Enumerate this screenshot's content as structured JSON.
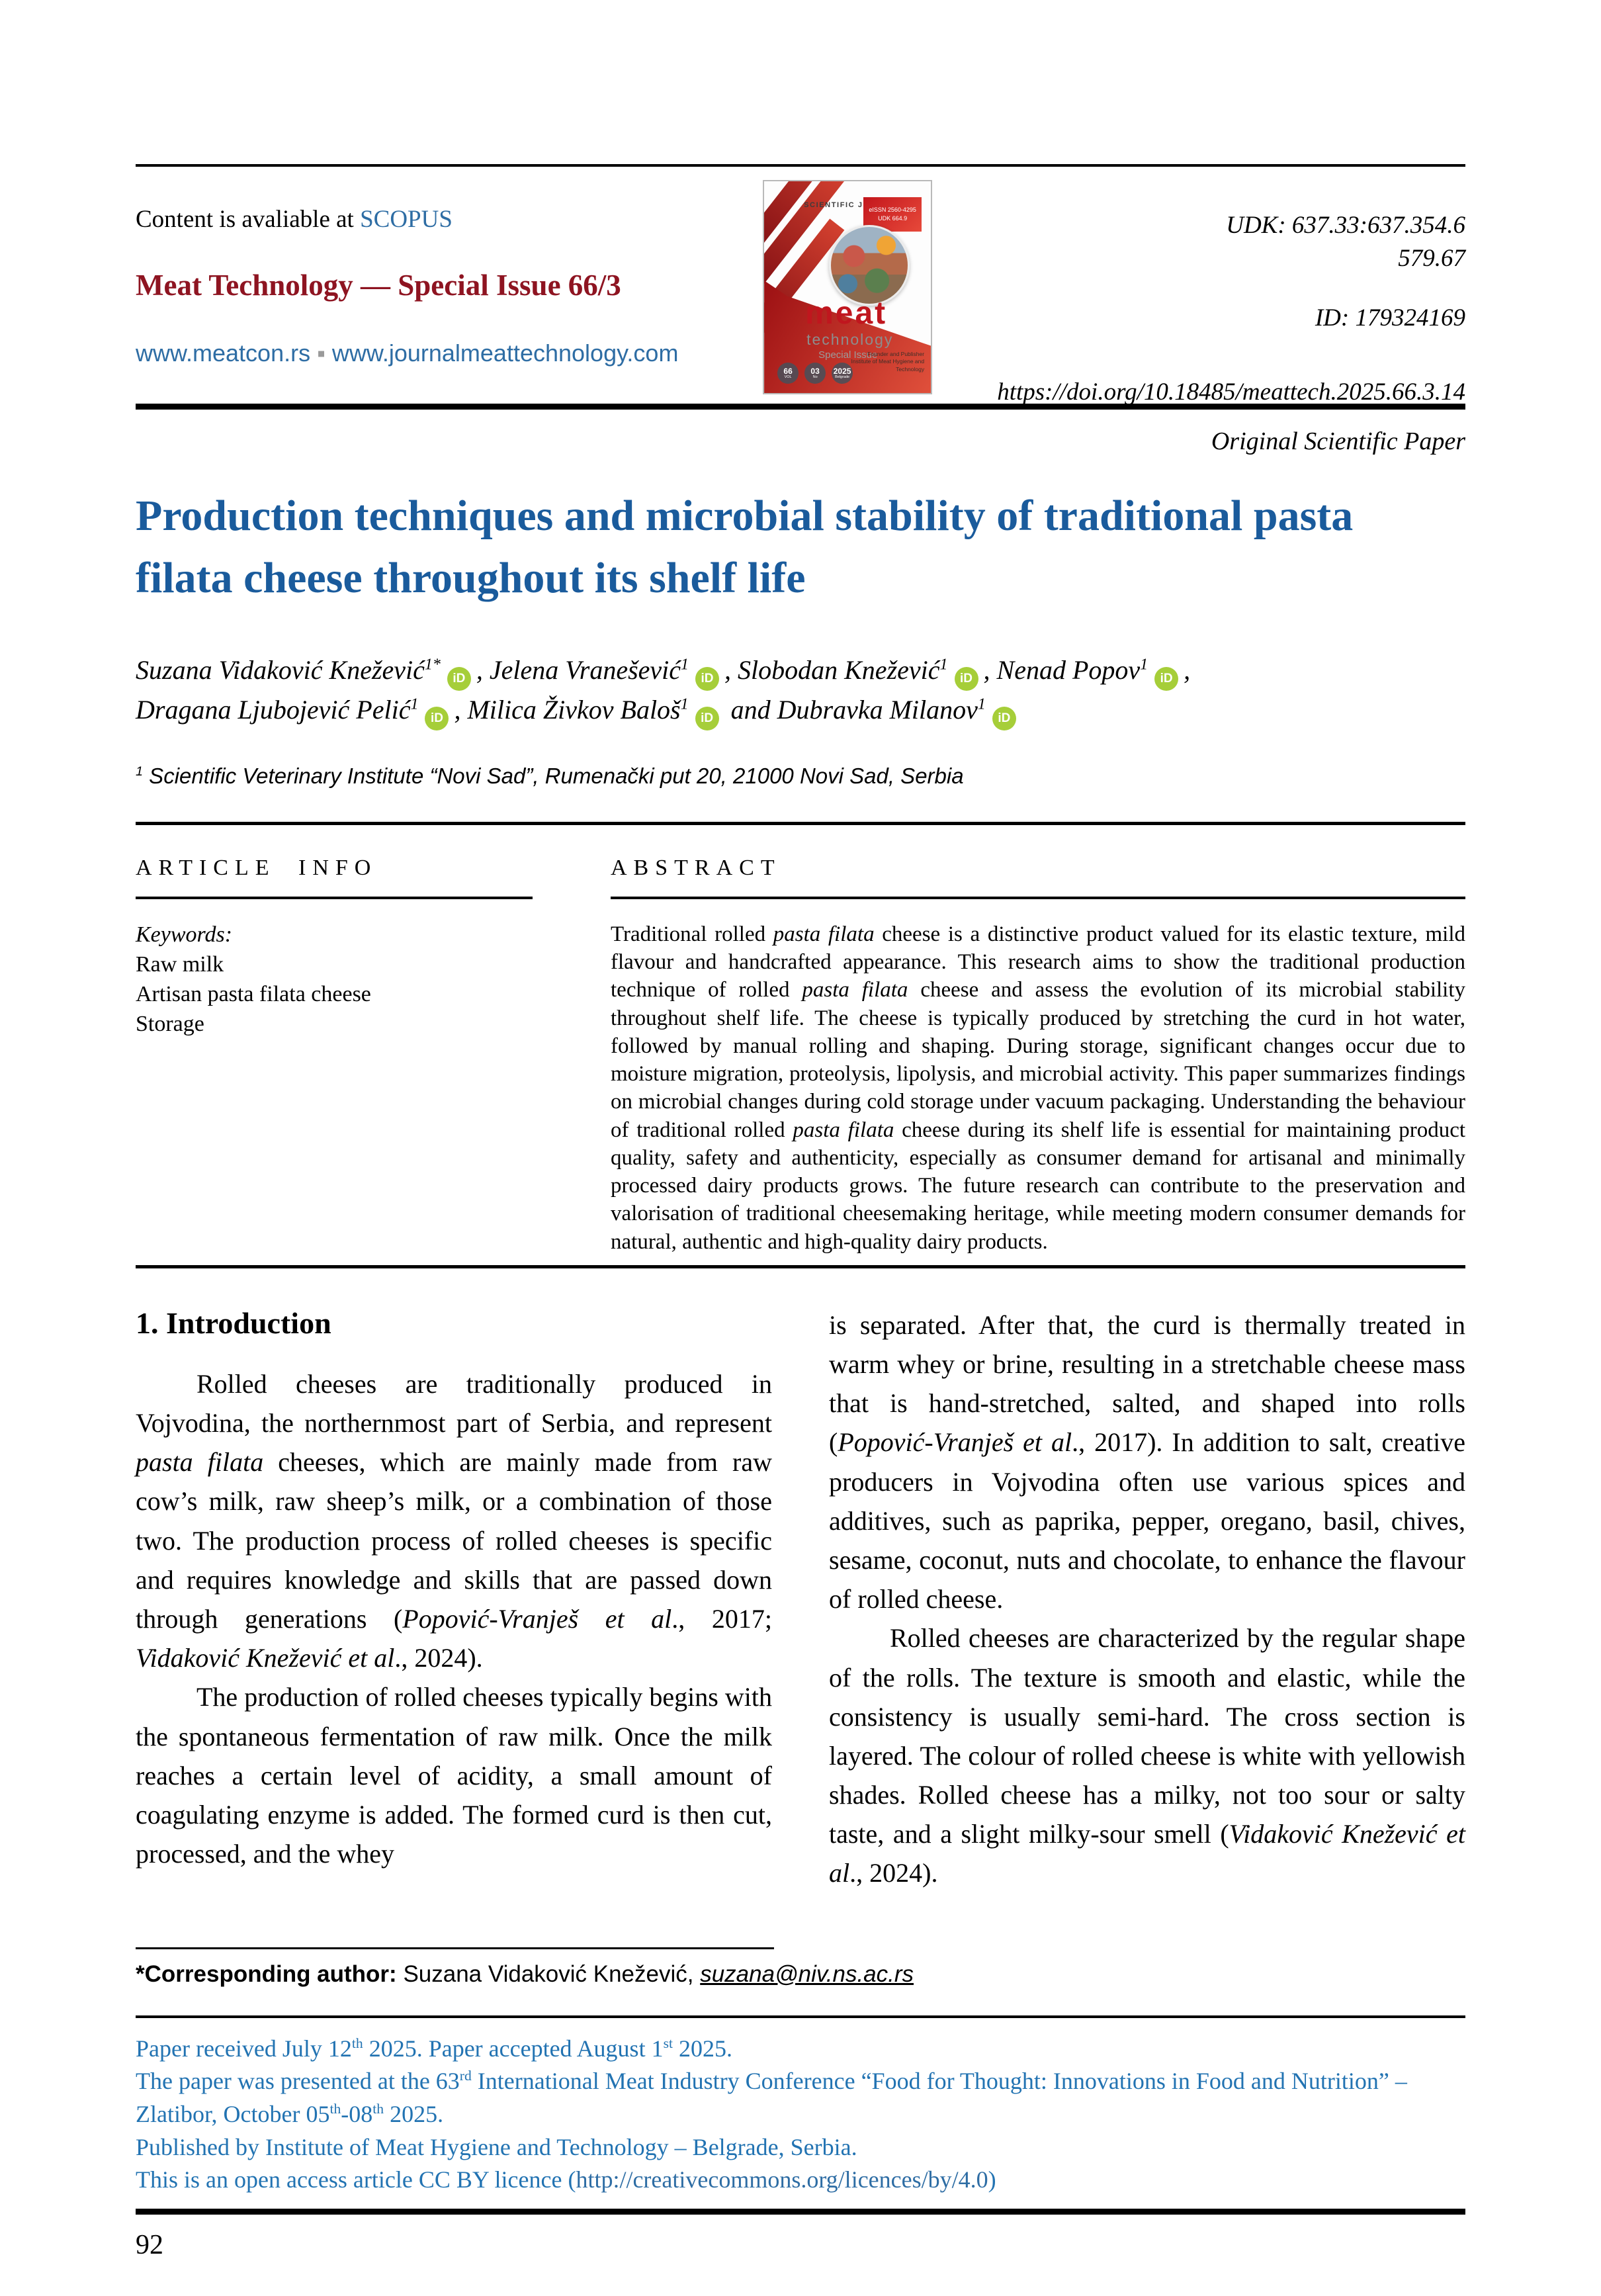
{
  "colors": {
    "title_blue": "#1a5b9c",
    "journal_red": "#8e1421",
    "link_blue": "#2e6da4",
    "footer_blue": "#2273b2",
    "orcid_green": "#a6ce39"
  },
  "orcid_label": "iD",
  "header": {
    "availability": [
      {
        "t": "Content is avaliable at "
      },
      {
        "t": "SCOPUS",
        "c": "#2e6da4",
        "ln": "scopus-link"
      }
    ],
    "journal_title": "Meat Technology — Special Issue 66/3",
    "links": [
      {
        "t": "www.meatcon.rs",
        "ln": "meatcon-link"
      },
      {
        "t": " ▪ ",
        "c": "#9a9a9a"
      },
      {
        "t": "www.journalmeattechnology.com",
        "ln": "journal-site-link"
      }
    ],
    "udk_line1": "UDK: 637.33:637.354.6",
    "udk_line2": "579.67",
    "id_line": "ID: 179324169",
    "doi": "https://doi.org/10.18485/meattech.2025.66.3.14"
  },
  "cover": {
    "scientific_journal": "SCIENTIFIC JOURNAL",
    "issn": "eISSN 2560-4295",
    "udk": "UDK 664.9",
    "brand_meat": "meat",
    "brand_technology": "technology",
    "special_issue": "Special Issue",
    "founder": "Founder and Publisher Institute of Meat Hygiene and Technology",
    "vol_num": "66",
    "vol_label": "VOL",
    "no_num": "03",
    "no_label": "No",
    "year_num": "2025",
    "year_label": "Belgrade"
  },
  "paper_type": "Original Scientific Paper",
  "title": "Production techniques and microbial stability of traditional pasta filata cheese throughout its shelf life",
  "authors_line1": [
    {
      "t": "Suzana Vidaković Knežević"
    },
    {
      "t": "1*",
      "sup": true
    },
    {
      "icon": "orcid"
    },
    {
      "t": ", "
    },
    {
      "t": "Jelena Vranešević"
    },
    {
      "t": "1",
      "sup": true
    },
    {
      "icon": "orcid"
    },
    {
      "t": ", "
    },
    {
      "t": "Slobodan Knežević"
    },
    {
      "t": "1",
      "sup": true
    },
    {
      "icon": "orcid"
    },
    {
      "t": ", "
    },
    {
      "t": "Nenad Popov"
    },
    {
      "t": "1",
      "sup": true
    },
    {
      "icon": "orcid"
    },
    {
      "t": ","
    }
  ],
  "authors_line2": [
    {
      "t": "Dragana Ljubojević Pelić"
    },
    {
      "t": "1",
      "sup": true
    },
    {
      "icon": "orcid"
    },
    {
      "t": ", "
    },
    {
      "t": "Milica Živkov Baloš"
    },
    {
      "t": "1",
      "sup": true
    },
    {
      "icon": "orcid"
    },
    {
      "t": " and Dubravka Milanov"
    },
    {
      "t": "1",
      "sup": true
    },
    {
      "icon": "orcid"
    }
  ],
  "affiliation": [
    {
      "t": "1",
      "sup": true
    },
    {
      "t": " Scientific Veterinary Institute “Novi Sad”, Rumenački put 20, 21000 Novi Sad, Serbia"
    }
  ],
  "article_info": {
    "header": "ARTICLE INFO",
    "keywords_label": "Keywords:",
    "keywords": [
      "Raw milk",
      "Artisan pasta filata cheese",
      "Storage"
    ]
  },
  "abstract": {
    "header": "ABSTRACT",
    "text": [
      {
        "t": "Traditional rolled "
      },
      {
        "t": "pasta filata",
        "i": true
      },
      {
        "t": " cheese is a distinctive product valued for its elastic texture, mild flavour and handcrafted appearance. This research aims to show the traditional production technique of rolled "
      },
      {
        "t": "pasta filata",
        "i": true
      },
      {
        "t": " cheese and assess the evolution of its microbial stability throughout shelf life. The cheese is typically produced by stretching the curd in hot water, followed by manual rolling and shaping. During storage, significant changes occur due to moisture migration, proteolysis, lipolysis, and microbial activity. This paper summarizes findings on microbial changes during cold storage under vacuum packaging. Understanding the behaviour of traditional rolled "
      },
      {
        "t": "pasta filata",
        "i": true
      },
      {
        "t": " cheese during its shelf life is essential for maintaining product quality, safety and authenticity, especially as consumer demand for artisanal and minimally processed dairy products grows. The future research can contribute to the preservation and valorisation of traditional cheesemaking heritage, while meeting modern consumer demands for natural, authentic and high-quality dairy products."
      }
    ]
  },
  "introduction": {
    "heading": "1. Introduction",
    "left_p1": [
      {
        "t": "Rolled cheeses are traditionally produced in Vojvodina, the northernmost part of Serbia, and represent "
      },
      {
        "t": "pasta filata",
        "i": true
      },
      {
        "t": " cheeses, which are mainly made from raw cow’s milk, raw sheep’s milk, or a combination of those two. The production process of rolled cheeses is specific and requires knowledge and skills that are passed down through generations ("
      },
      {
        "t": "Popović-Vranješ et al",
        "i": true
      },
      {
        "t": "., 2017; "
      },
      {
        "t": "Vidaković Knežević et al",
        "i": true
      },
      {
        "t": "., 2024)."
      }
    ],
    "left_p2": [
      {
        "t": "The production of rolled cheeses typically begins with the spontaneous fermentation of raw milk. Once the milk reaches a certain level of acidity, a small amount of coagulating enzyme is added. The formed curd is then cut, processed, and the whey"
      }
    ],
    "right_p1": [
      {
        "t": "is separated. After that, the curd is thermally treated in warm whey or brine, resulting in a stretchable cheese mass that is hand-stretched, salted, and shaped into rolls ("
      },
      {
        "t": "Popović-Vranješ et al",
        "i": true
      },
      {
        "t": "., 2017). In addition to salt, creative producers in Vojvodina often use various spices and additives, such as paprika, pepper, oregano, basil, chives, sesame, coconut, nuts and chocolate, to enhance the flavour of rolled cheese."
      }
    ],
    "right_p2": [
      {
        "t": "Rolled cheeses are characterized by the regular shape of the rolls. The texture is smooth and elastic, while the consistency is usually semi-hard. The cross section is layered. The colour of rolled cheese is white with yellowish shades. Rolled cheese has a milky, not too sour or salty taste, and a slight milky-sour smell ("
      },
      {
        "t": "Vidaković Knežević et al",
        "i": true
      },
      {
        "t": "., 2024)."
      }
    ]
  },
  "footnote": {
    "line": [
      {
        "t": "*Corresponding author: ",
        "b": true
      },
      {
        "t": "Suzana Vidaković Knežević, "
      },
      {
        "t": "suzana@niv.ns.ac.rs",
        "i": true,
        "u": true,
        "ln": "corresponding-email-link"
      }
    ]
  },
  "footer": {
    "line1": [
      {
        "t": "Paper received July 12"
      },
      {
        "t": "th",
        "sup": true
      },
      {
        "t": " 2025. Paper accepted August 1"
      },
      {
        "t": "st",
        "sup": true
      },
      {
        "t": " 2025."
      }
    ],
    "line2": [
      {
        "t": "The paper was presented at the 63"
      },
      {
        "t": "rd",
        "sup": true
      },
      {
        "t": " International Meat Industry Conference “Food for Thought: Innovations in Food and Nutrition” – Zlatibor, October 05"
      },
      {
        "t": "th",
        "sup": true
      },
      {
        "t": "-08"
      },
      {
        "t": "th",
        "sup": true
      },
      {
        "t": " 2025."
      }
    ],
    "line3": [
      {
        "t": "Published by Institute of Meat Hygiene and Technology – Belgrade, Serbia."
      }
    ],
    "line4": [
      {
        "t": "This is an open access article CC BY licence ("
      },
      {
        "t": "http://creativecommons.org/licences/by/4.0",
        "ln": "cc-licence-link"
      },
      {
        "t": ")"
      }
    ]
  },
  "page_number": "92"
}
